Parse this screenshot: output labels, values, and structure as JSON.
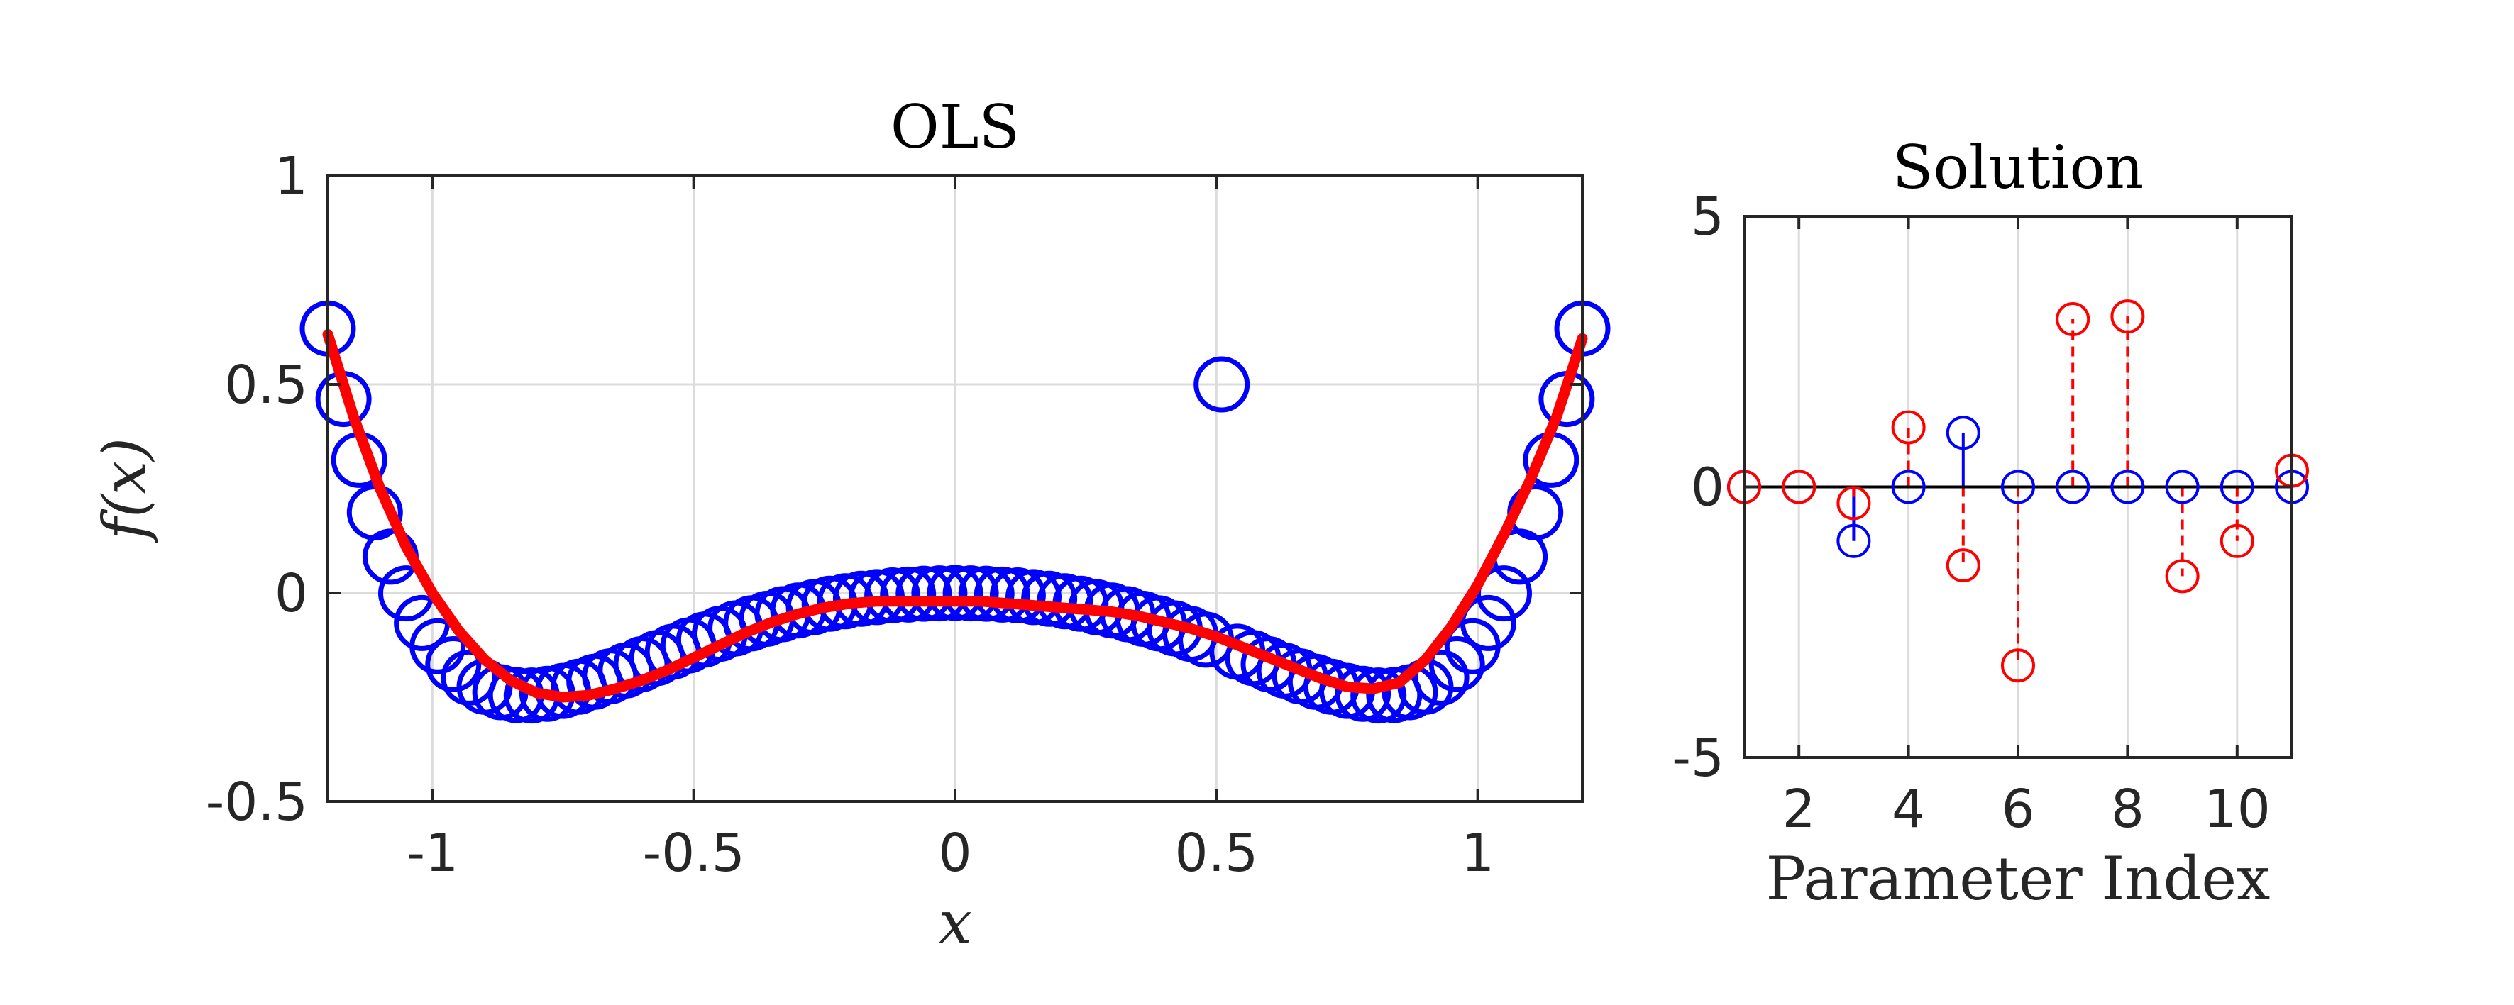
{
  "chart_data": [
    {
      "type": "scatter",
      "title": "OLS",
      "xlabel": "x",
      "ylabel": "f(x)",
      "xlim": [
        -1.2,
        1.2
      ],
      "ylim": [
        -0.5,
        1
      ],
      "xticks": [
        -1,
        -0.5,
        0,
        0.5,
        1
      ],
      "xtick_labels": [
        "-1",
        "-0.5",
        "0",
        "0.5",
        "1"
      ],
      "yticks": [
        -0.5,
        0,
        0.5,
        1
      ],
      "ytick_labels": [
        "-0.5",
        "0",
        "0.5",
        "1"
      ],
      "grid": true,
      "series": [
        {
          "kind": "scatter",
          "marker": "open-circle",
          "color": "#0000ff",
          "x": [
            -1.2,
            -1.17,
            -1.14,
            -1.11,
            -1.08,
            -1.05,
            -1.02,
            -0.99,
            -0.96,
            -0.93,
            -0.9,
            -0.87,
            -0.84,
            -0.81,
            -0.78,
            -0.75,
            -0.72,
            -0.69,
            -0.66,
            -0.63,
            -0.6,
            -0.57,
            -0.54,
            -0.51,
            -0.48,
            -0.45,
            -0.42,
            -0.39,
            -0.36,
            -0.33,
            -0.3,
            -0.27,
            -0.24,
            -0.21,
            -0.18,
            -0.15,
            -0.12,
            -0.09,
            -0.06,
            -0.03,
            0,
            0.03,
            0.06,
            0.09,
            0.12,
            0.15,
            0.18,
            0.21,
            0.24,
            0.27,
            0.3,
            0.33,
            0.36,
            0.39,
            0.42,
            0.45,
            0.48,
            0.51,
            0.54,
            0.57,
            0.6,
            0.63,
            0.66,
            0.69,
            0.72,
            0.75,
            0.78,
            0.81,
            0.84,
            0.87,
            0.9,
            0.93,
            0.96,
            0.99,
            1.02,
            1.05,
            1.08,
            1.11,
            1.14,
            1.17,
            1.2
          ],
          "y": [
            0.634,
            0.465,
            0.319,
            0.193,
            0.087,
            -0.001,
            -0.072,
            -0.128,
            -0.171,
            -0.203,
            -0.225,
            -0.238,
            -0.245,
            -0.246,
            -0.242,
            -0.235,
            -0.225,
            -0.213,
            -0.2,
            -0.186,
            -0.171,
            -0.156,
            -0.141,
            -0.126,
            -0.112,
            -0.098,
            -0.085,
            -0.073,
            -0.062,
            -0.051,
            -0.042,
            -0.034,
            -0.026,
            -0.02,
            -0.014,
            -0.01,
            -0.006,
            -0.004,
            -0.002,
            -0.001,
            0.0,
            -0.001,
            -0.002,
            -0.004,
            -0.006,
            -0.01,
            -0.014,
            -0.02,
            -0.026,
            -0.034,
            -0.042,
            -0.051,
            -0.062,
            -0.073,
            -0.085,
            -0.098,
            -0.112,
            0.5,
            -0.141,
            -0.156,
            -0.171,
            -0.186,
            -0.2,
            -0.213,
            -0.225,
            -0.235,
            -0.242,
            -0.246,
            -0.245,
            -0.238,
            -0.225,
            -0.203,
            -0.171,
            -0.128,
            -0.072,
            -0.001,
            0.087,
            0.193,
            0.319,
            0.465,
            0.634
          ]
        },
        {
          "kind": "line",
          "color": "#ff0000",
          "x": [
            -1.2,
            -1.15,
            -1.1,
            -1.05,
            -1.0,
            -0.95,
            -0.9,
            -0.85,
            -0.8,
            -0.75,
            -0.7,
            -0.65,
            -0.6,
            -0.55,
            -0.5,
            -0.45,
            -0.4,
            -0.35,
            -0.3,
            -0.25,
            -0.2,
            -0.15,
            -0.1,
            -0.05,
            0.0,
            0.05,
            0.1,
            0.15,
            0.2,
            0.25,
            0.3,
            0.35,
            0.4,
            0.45,
            0.5,
            0.55,
            0.6,
            0.65,
            0.7,
            0.75,
            0.8,
            0.85,
            0.9,
            0.95,
            1.0,
            1.05,
            1.1,
            1.15,
            1.2
          ],
          "y": [
            0.62,
            0.42,
            0.25,
            0.11,
            0.0,
            -0.09,
            -0.16,
            -0.21,
            -0.24,
            -0.25,
            -0.245,
            -0.23,
            -0.21,
            -0.185,
            -0.155,
            -0.125,
            -0.095,
            -0.07,
            -0.05,
            -0.035,
            -0.025,
            -0.02,
            -0.02,
            -0.02,
            -0.02,
            -0.02,
            -0.025,
            -0.03,
            -0.035,
            -0.04,
            -0.045,
            -0.055,
            -0.07,
            -0.085,
            -0.105,
            -0.13,
            -0.155,
            -0.18,
            -0.205,
            -0.225,
            -0.23,
            -0.215,
            -0.16,
            -0.08,
            0.02,
            0.14,
            0.27,
            0.42,
            0.61
          ]
        }
      ]
    },
    {
      "type": "stem",
      "title": "Solution",
      "xlabel": "Parameter Index",
      "ylabel": "",
      "xlim": [
        1,
        11
      ],
      "ylim": [
        -5,
        5
      ],
      "xticks": [
        2,
        4,
        6,
        8,
        10
      ],
      "xtick_labels": [
        "2",
        "4",
        "6",
        "8",
        "10"
      ],
      "yticks": [
        -5,
        0,
        5
      ],
      "ytick_labels": [
        "-5",
        "0",
        "5"
      ],
      "grid": true,
      "series": [
        {
          "kind": "stem",
          "line_style": "solid",
          "color": "#0000ff",
          "x": [
            1,
            2,
            3,
            4,
            5,
            6,
            7,
            8,
            9,
            10,
            11
          ],
          "y": [
            0,
            0,
            -1,
            0,
            1,
            0,
            0,
            0,
            0,
            0,
            0
          ]
        },
        {
          "kind": "stem",
          "line_style": "dashed",
          "color": "#ff0000",
          "x": [
            1,
            2,
            3,
            4,
            5,
            6,
            7,
            8,
            9,
            10,
            11
          ],
          "y": [
            0,
            0,
            -0.3,
            1.1,
            -1.45,
            -3.3,
            3.1,
            3.15,
            -1.65,
            -1.0,
            0.3
          ]
        }
      ]
    }
  ]
}
